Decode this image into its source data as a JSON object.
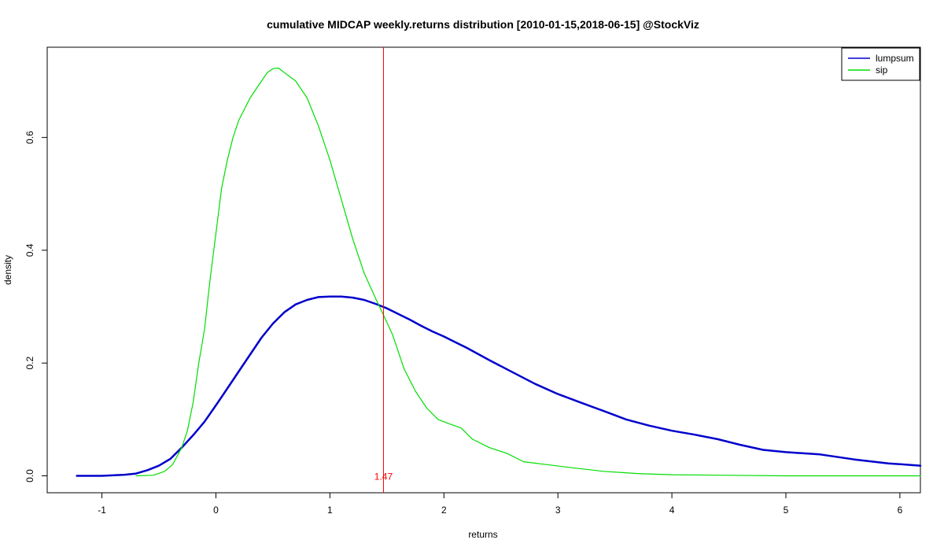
{
  "chart_data": {
    "type": "line",
    "title": "cumulative MIDCAP weekly.returns distribution [2010-01-15,2018-06-15] @StockViz",
    "xlabel": "returns",
    "ylabel": "density",
    "xlim": [
      -1.48,
      6.18
    ],
    "ylim": [
      -0.03,
      0.76
    ],
    "x_ticks": [
      -1,
      0,
      1,
      2,
      3,
      4,
      5,
      6
    ],
    "x_tick_labels": [
      "-1",
      "0",
      "1",
      "2",
      "3",
      "4",
      "5",
      "6"
    ],
    "y_ticks": [
      0.0,
      0.2,
      0.4,
      0.6
    ],
    "y_tick_labels": [
      "0.0",
      "0.2",
      "0.4",
      "0.6"
    ],
    "grid": false,
    "legend_position": "top-right",
    "vline": {
      "x": 1.47,
      "label": "1.47",
      "color": "#ff0000"
    },
    "series": [
      {
        "name": "lumpsum",
        "color": "#0000cc",
        "points": [
          [
            -1.22,
            0.0
          ],
          [
            -1.0,
            0.0
          ],
          [
            -0.8,
            0.002
          ],
          [
            -0.7,
            0.004
          ],
          [
            -0.6,
            0.01
          ],
          [
            -0.5,
            0.018
          ],
          [
            -0.4,
            0.03
          ],
          [
            -0.3,
            0.05
          ],
          [
            -0.2,
            0.072
          ],
          [
            -0.1,
            0.096
          ],
          [
            0.0,
            0.125
          ],
          [
            0.1,
            0.155
          ],
          [
            0.2,
            0.185
          ],
          [
            0.3,
            0.215
          ],
          [
            0.4,
            0.245
          ],
          [
            0.5,
            0.27
          ],
          [
            0.6,
            0.29
          ],
          [
            0.7,
            0.304
          ],
          [
            0.8,
            0.312
          ],
          [
            0.9,
            0.317
          ],
          [
            1.0,
            0.318
          ],
          [
            1.1,
            0.318
          ],
          [
            1.2,
            0.316
          ],
          [
            1.3,
            0.312
          ],
          [
            1.4,
            0.305
          ],
          [
            1.5,
            0.297
          ],
          [
            1.6,
            0.287
          ],
          [
            1.7,
            0.277
          ],
          [
            1.8,
            0.266
          ],
          [
            1.9,
            0.256
          ],
          [
            2.0,
            0.247
          ],
          [
            2.1,
            0.237
          ],
          [
            2.2,
            0.227
          ],
          [
            2.4,
            0.205
          ],
          [
            2.6,
            0.184
          ],
          [
            2.8,
            0.163
          ],
          [
            3.0,
            0.145
          ],
          [
            3.2,
            0.13
          ],
          [
            3.4,
            0.115
          ],
          [
            3.6,
            0.1
          ],
          [
            3.8,
            0.089
          ],
          [
            4.0,
            0.08
          ],
          [
            4.2,
            0.073
          ],
          [
            4.4,
            0.065
          ],
          [
            4.6,
            0.055
          ],
          [
            4.8,
            0.046
          ],
          [
            5.0,
            0.042
          ],
          [
            5.3,
            0.038
          ],
          [
            5.6,
            0.029
          ],
          [
            5.9,
            0.022
          ],
          [
            6.18,
            0.018
          ]
        ]
      },
      {
        "name": "sip",
        "color": "#00dd00",
        "points": [
          [
            -0.7,
            0.0
          ],
          [
            -0.55,
            0.001
          ],
          [
            -0.45,
            0.008
          ],
          [
            -0.38,
            0.02
          ],
          [
            -0.3,
            0.05
          ],
          [
            -0.25,
            0.08
          ],
          [
            -0.2,
            0.13
          ],
          [
            -0.15,
            0.2
          ],
          [
            -0.1,
            0.26
          ],
          [
            -0.05,
            0.35
          ],
          [
            0.0,
            0.43
          ],
          [
            0.05,
            0.51
          ],
          [
            0.1,
            0.56
          ],
          [
            0.15,
            0.6
          ],
          [
            0.2,
            0.63
          ],
          [
            0.3,
            0.67
          ],
          [
            0.4,
            0.7
          ],
          [
            0.45,
            0.715
          ],
          [
            0.5,
            0.722
          ],
          [
            0.55,
            0.723
          ],
          [
            0.6,
            0.715
          ],
          [
            0.7,
            0.7
          ],
          [
            0.8,
            0.67
          ],
          [
            0.9,
            0.62
          ],
          [
            1.0,
            0.56
          ],
          [
            1.1,
            0.49
          ],
          [
            1.2,
            0.42
          ],
          [
            1.3,
            0.36
          ],
          [
            1.4,
            0.315
          ],
          [
            1.47,
            0.285
          ],
          [
            1.55,
            0.25
          ],
          [
            1.65,
            0.19
          ],
          [
            1.75,
            0.15
          ],
          [
            1.85,
            0.12
          ],
          [
            1.95,
            0.1
          ],
          [
            2.05,
            0.092
          ],
          [
            2.15,
            0.085
          ],
          [
            2.25,
            0.065
          ],
          [
            2.4,
            0.05
          ],
          [
            2.55,
            0.04
          ],
          [
            2.7,
            0.025
          ],
          [
            2.9,
            0.02
          ],
          [
            3.1,
            0.015
          ],
          [
            3.4,
            0.008
          ],
          [
            3.7,
            0.004
          ],
          [
            4.0,
            0.002
          ],
          [
            4.5,
            0.001
          ],
          [
            5.0,
            0.0
          ],
          [
            6.18,
            0.0
          ]
        ]
      }
    ]
  }
}
